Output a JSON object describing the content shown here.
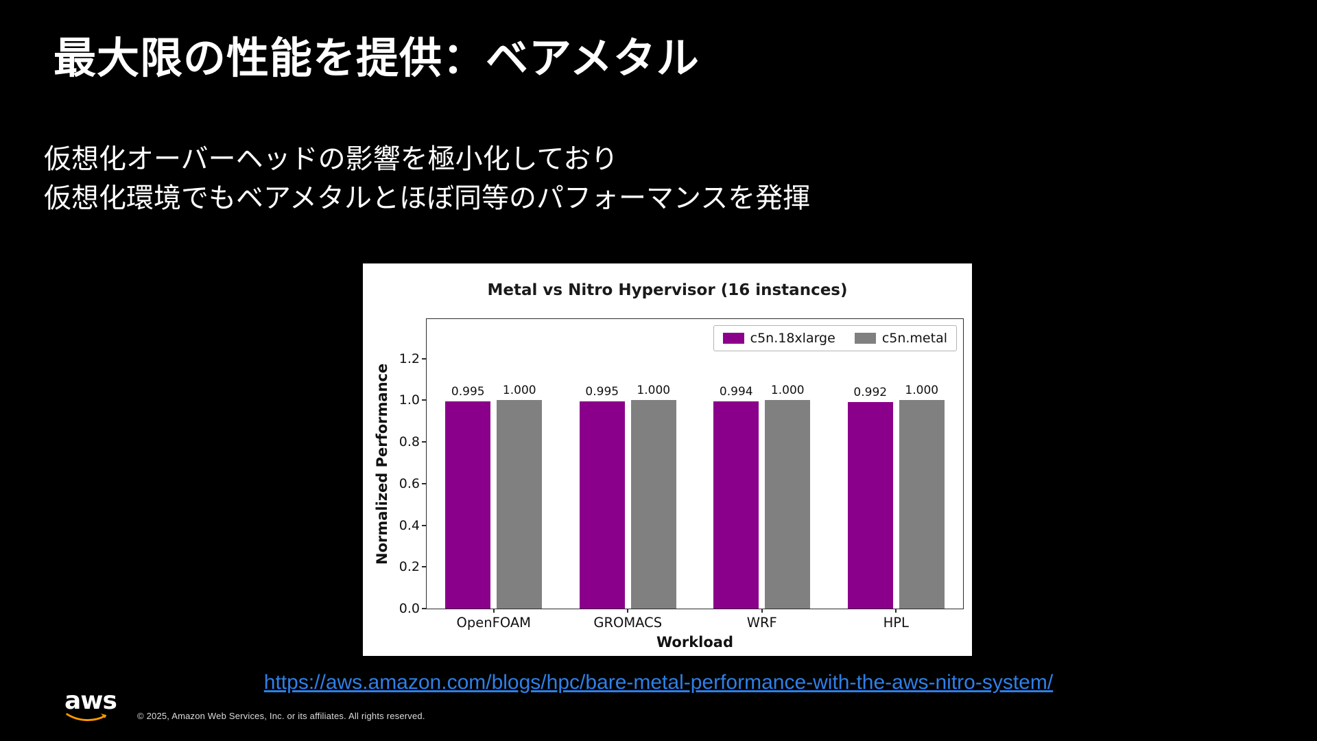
{
  "slide": {
    "title": "最大限の性能を提供：ベアメタル",
    "body_lines": [
      "仮想化オーバーヘッドの影響を極小化しており",
      "仮想化環境でもベアメタルとほぼ同等のパフォーマンスを発揮"
    ],
    "source_link": {
      "text": "https://aws.amazon.com/blogs/hpc/bare-metal-performance-with-the-aws-nitro-system/",
      "href": "https://aws.amazon.com/blogs/hpc/bare-metal-performance-with-the-aws-nitro-system/"
    },
    "footer": {
      "logo_text": "aws",
      "copyright": "© 2025, Amazon Web Services, Inc. or its affiliates. All rights reserved."
    }
  },
  "colors": {
    "background": "#000000",
    "slide_text": "#FFFFFF",
    "link": "#2E80E8",
    "logo_orange": "#FF9900"
  },
  "chart_data": {
    "type": "bar",
    "title": "Metal vs Nitro Hypervisor (16 instances)",
    "categories": [
      "OpenFOAM",
      "GROMACS",
      "WRF",
      "HPL"
    ],
    "series": [
      {
        "name": "c5n.18xlarge",
        "color": "#8B008B",
        "values": [
          0.995,
          0.995,
          0.994,
          0.992
        ]
      },
      {
        "name": "c5n.metal",
        "color": "#808080",
        "values": [
          1.0,
          1.0,
          1.0,
          1.0
        ]
      }
    ],
    "xlabel": "Workload",
    "ylabel": "Normalized Performance",
    "ylim": [
      0,
      1.39
    ],
    "yticks": [
      0.0,
      0.2,
      0.4,
      0.6,
      0.8,
      1.0,
      1.2
    ],
    "value_label_decimals": 3,
    "legend_position": "upper right",
    "grid": false
  }
}
